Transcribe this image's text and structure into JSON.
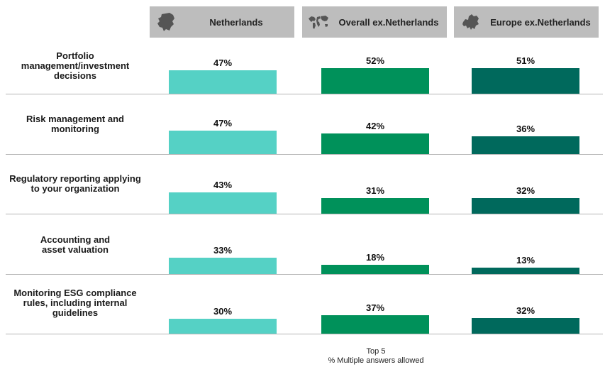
{
  "chart_data": {
    "type": "bar",
    "categories": [
      "Portfolio management/investment decisions",
      "Risk management and monitoring",
      "Regulatory reporting applying to your organization",
      "Accounting and asset valuation",
      "Monitoring ESG compliance rules, including internal guidelines"
    ],
    "category_lines": [
      [
        "Portfolio",
        "management/investment",
        "decisions"
      ],
      [
        "Risk management and",
        "monitoring"
      ],
      [
        "Regulatory reporting applying",
        "to your organization"
      ],
      [
        "Accounting and",
        "asset valuation"
      ],
      [
        "Monitoring ESG compliance",
        "rules, including internal",
        "guidelines"
      ]
    ],
    "series": [
      {
        "name": "Netherlands",
        "name_lines": [
          "Netherlands"
        ],
        "icon": "netherlands-map-icon",
        "color": "#55d1c5",
        "values": [
          47,
          47,
          43,
          33,
          30
        ]
      },
      {
        "name": "Overall ex. Netherlands",
        "name_lines": [
          "Overall ex.",
          "Netherlands"
        ],
        "icon": "world-map-icon",
        "color": "#00915a",
        "values": [
          52,
          42,
          31,
          18,
          37
        ]
      },
      {
        "name": "Europe ex. Netherlands",
        "name_lines": [
          "Europe ex.",
          "Netherlands"
        ],
        "icon": "europe-map-icon",
        "color": "#00695c",
        "values": [
          51,
          36,
          32,
          13,
          32
        ]
      }
    ],
    "value_suffix": "%",
    "footnote": [
      "Top 5",
      "% Multiple answers allowed"
    ]
  }
}
